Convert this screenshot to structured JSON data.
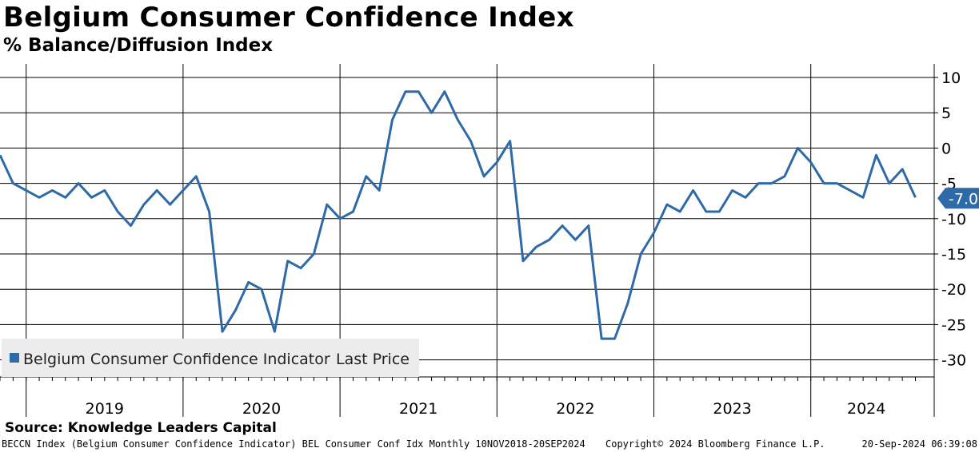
{
  "header": {
    "title": "Belgium Consumer Confidence Index",
    "subtitle": "% Balance/Diffusion Index"
  },
  "footer": {
    "source": "Source: Knowledge Leaders Capital",
    "ticker_info": "BECCN Index (Belgium Consumer Confidence Indicator) BEL Consumer Conf Idx  Monthly 10NOV2018-20SEP2024",
    "copyright": "Copyright© 2024 Bloomberg Finance L.P.",
    "timestamp": "20-Sep-2024 06:39:08"
  },
  "colors": {
    "line": "#2e6aa8",
    "last_label_bg": "#2e6aa8",
    "legend_bg": "#ececec"
  },
  "chart_data": {
    "type": "line",
    "title": "Belgium Consumer Confidence Index",
    "subtitle": "% Balance/Diffusion Index",
    "xlabel": "",
    "ylabel": "",
    "ylim": [
      -31,
      11
    ],
    "yticks": [
      10,
      5,
      0,
      -5,
      -10,
      -15,
      -20,
      -25,
      -30
    ],
    "ytick_labels": [
      "10",
      "5",
      "0",
      "-5",
      "-10",
      "-15",
      "-20",
      "-25",
      "-30"
    ],
    "xrange": [
      "2018-11",
      "2024-09"
    ],
    "year_labels": [
      "2019",
      "2020",
      "2021",
      "2022",
      "2023",
      "2024"
    ],
    "gridlines": true,
    "legend": {
      "position": "bottom-left",
      "label": "Belgium Consumer Confidence Indicator",
      "field": "Last Price"
    },
    "last_value_label": "-7.0",
    "series": [
      {
        "name": "Belgium Consumer Confidence Indicator",
        "start": "2018-11",
        "frequency": "monthly",
        "values": [
          -1,
          -5,
          -6,
          -7,
          -6,
          -7,
          -5,
          -7,
          -6,
          -9,
          -11,
          -8,
          -6,
          -8,
          -6,
          -4,
          -9,
          -26,
          -23,
          -19,
          -20,
          -26,
          -16,
          -17,
          -15,
          -8,
          -10,
          -9,
          -4,
          -6,
          4,
          8,
          8,
          5,
          8,
          4,
          1,
          -4,
          -2,
          1,
          -16,
          -14,
          -13,
          -11,
          -13,
          -11,
          -27,
          -27,
          -22,
          -15,
          -12,
          -8,
          -9,
          -6,
          -9,
          -9,
          -6,
          -7,
          -5,
          -5,
          -4,
          0,
          -2,
          -5,
          -5,
          -6,
          -7,
          -1,
          -5,
          -3,
          -7
        ]
      }
    ]
  }
}
